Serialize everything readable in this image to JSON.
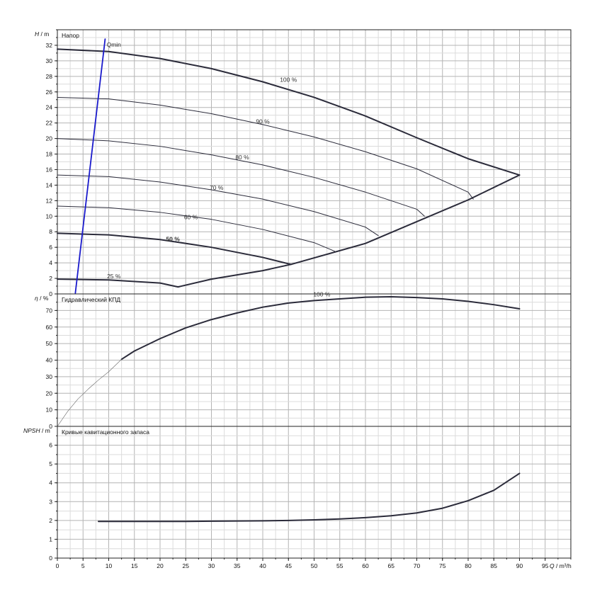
{
  "chart_data": [
    {
      "type": "line",
      "panel": "head",
      "title": "Напор",
      "ylabel_var": "H",
      "ylabel_unit": "m",
      "xlim": [
        0,
        100
      ],
      "ylim": [
        0,
        34
      ],
      "yticks": [
        0,
        2,
        4,
        6,
        8,
        10,
        12,
        14,
        16,
        18,
        20,
        22,
        24,
        26,
        28,
        30,
        32
      ],
      "grid": true,
      "series": [
        {
          "name": "100 %",
          "bold": true,
          "x": [
            0,
            10,
            20,
            30,
            40,
            50,
            60,
            70,
            80,
            90
          ],
          "y": [
            31.5,
            31.2,
            30.3,
            29.0,
            27.3,
            25.3,
            22.9,
            20.1,
            17.4,
            15.3
          ]
        },
        {
          "name": "90 %",
          "bold": false,
          "x": [
            0,
            10,
            20,
            30,
            40,
            50,
            60,
            70,
            80,
            81
          ],
          "y": [
            25.3,
            25.1,
            24.3,
            23.2,
            21.8,
            20.2,
            18.3,
            16.1,
            13.1,
            12.2
          ]
        },
        {
          "name": "80 %",
          "bold": false,
          "x": [
            0,
            10,
            20,
            30,
            40,
            50,
            60,
            70,
            71.5
          ],
          "y": [
            20.0,
            19.7,
            19.0,
            17.9,
            16.6,
            15.0,
            13.1,
            10.9,
            10.0
          ]
        },
        {
          "name": "70 %",
          "bold": false,
          "x": [
            0,
            10,
            20,
            30,
            40,
            50,
            60,
            62.5
          ],
          "y": [
            15.3,
            15.1,
            14.4,
            13.4,
            12.2,
            10.6,
            8.6,
            7.5
          ]
        },
        {
          "name": "60 %",
          "bold": false,
          "x": [
            0,
            10,
            20,
            30,
            40,
            50,
            54
          ],
          "y": [
            11.3,
            11.1,
            10.5,
            9.6,
            8.3,
            6.6,
            5.5
          ]
        },
        {
          "name": "50 %",
          "bold": true,
          "x": [
            0,
            10,
            20,
            30,
            40,
            45.5
          ],
          "y": [
            7.8,
            7.6,
            7.0,
            6.0,
            4.7,
            3.8
          ]
        },
        {
          "name": "25 %",
          "bold": true,
          "x": [
            0,
            10,
            20,
            23.5,
            30,
            40,
            45.5,
            60,
            70,
            80,
            90
          ],
          "y": [
            1.9,
            1.8,
            1.4,
            0.9,
            1.9,
            3.0,
            3.8,
            6.5,
            9.3,
            12.1,
            15.3
          ]
        },
        {
          "name": "Qmin",
          "color": "#1a1acc",
          "x": [
            3.5,
            9.3
          ],
          "y": [
            0.1,
            32.8
          ]
        }
      ]
    },
    {
      "type": "line",
      "panel": "efficiency",
      "title": "Гидравлический КПД",
      "ylabel_var": "η",
      "ylabel_unit": "%",
      "xlim": [
        0,
        100
      ],
      "ylim": [
        0,
        80
      ],
      "yticks": [
        0,
        10,
        20,
        30,
        40,
        50,
        60,
        70
      ],
      "grid": true,
      "series": [
        {
          "name": "100 %",
          "bold": true,
          "x": [
            12.5,
            15,
            20,
            25,
            30,
            35,
            40,
            45,
            50,
            55,
            60,
            65,
            70,
            75,
            80,
            85,
            90
          ],
          "y": [
            40.5,
            45.5,
            53.0,
            59.5,
            64.5,
            68.5,
            72.0,
            74.5,
            76.0,
            77.0,
            78.0,
            78.3,
            77.8,
            77.0,
            75.5,
            73.5,
            71.0
          ]
        },
        {
          "name": "",
          "thin": true,
          "x": [
            0,
            2,
            4,
            6,
            8,
            10,
            12.5
          ],
          "y": [
            0,
            9,
            16.5,
            22.5,
            28,
            33,
            40.5
          ]
        }
      ]
    },
    {
      "type": "line",
      "panel": "npsh",
      "title": "Кривые кавитационного запаса",
      "ylabel_var": "NPSH",
      "ylabel_unit": "m",
      "xlabel_var": "Q",
      "xlabel_unit": "m³/h",
      "xlim": [
        0,
        100
      ],
      "ylim": [
        0,
        7
      ],
      "yticks": [
        0,
        1,
        2,
        3,
        4,
        5,
        6
      ],
      "xticks": [
        0,
        5,
        10,
        15,
        20,
        25,
        30,
        35,
        40,
        45,
        50,
        55,
        60,
        65,
        70,
        75,
        80,
        85,
        90,
        95
      ],
      "grid": true,
      "series": [
        {
          "name": "",
          "bold": true,
          "x": [
            8,
            15,
            20,
            25,
            30,
            35,
            40,
            45,
            50,
            55,
            60,
            65,
            70,
            75,
            80,
            85,
            90
          ],
          "y": [
            1.95,
            1.95,
            1.95,
            1.95,
            1.96,
            1.97,
            1.98,
            2.0,
            2.03,
            2.08,
            2.15,
            2.25,
            2.4,
            2.65,
            3.05,
            3.6,
            4.5
          ]
        }
      ]
    }
  ]
}
